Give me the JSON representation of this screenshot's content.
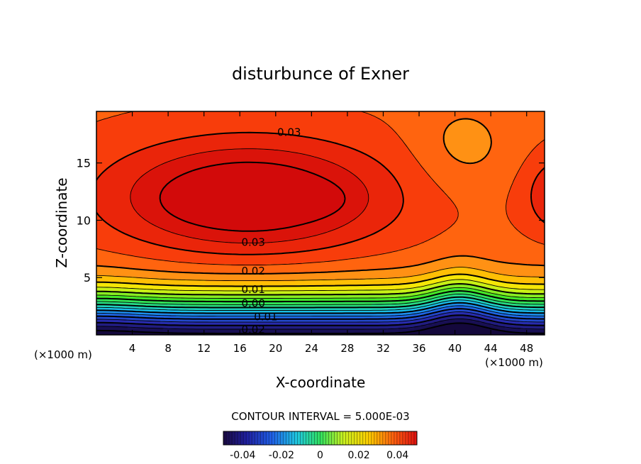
{
  "chart_data": {
    "type": "contour",
    "title": "disturbunce of Exner",
    "xlabel": "X-coordinate",
    "ylabel": "Z-coordinate",
    "x_unit_left": "(×1000 m)",
    "x_unit_right": "(×1000 m)",
    "xlim": [
      0,
      50
    ],
    "ylim": [
      0,
      19.5
    ],
    "x_ticks": [
      "4",
      "8",
      "12",
      "16",
      "20",
      "24",
      "28",
      "32",
      "36",
      "40",
      "44",
      "48"
    ],
    "y_ticks": [
      "5",
      "10",
      "15"
    ],
    "contour_interval_text": "CONTOUR INTERVAL = 5.000E-03",
    "contour_interval": 0.005,
    "contour_labels": [
      {
        "text": "0.03",
        "x": 21.5,
        "z": 17.7
      },
      {
        "text": "0.03",
        "x": 17.5,
        "z": 8.1
      },
      {
        "text": "0.02",
        "x": 17.5,
        "z": 5.6
      },
      {
        "text": "0.01",
        "x": 17.5,
        "z": 4.0
      },
      {
        "text": "0.00",
        "x": 17.5,
        "z": 2.8
      },
      {
        "text": "0.01",
        "x": 18.9,
        "z": 1.6
      },
      {
        "text": "0.02",
        "x": 17.5,
        "z": 0.5
      }
    ],
    "colorbar": {
      "ticks": [
        "-0.04",
        "-0.02",
        "0",
        "0.02",
        "0.04"
      ],
      "tick_values": [
        -0.04,
        -0.02,
        0,
        0.02,
        0.04
      ],
      "range": [
        -0.05,
        0.05
      ]
    },
    "field_features": [
      {
        "kind": "maximum",
        "x": 12,
        "z": 11.8
      },
      {
        "kind": "maximum",
        "x": 24.5,
        "z": 11.8
      },
      {
        "kind": "minimum",
        "x": 40.5,
        "z": 0.3
      }
    ]
  }
}
